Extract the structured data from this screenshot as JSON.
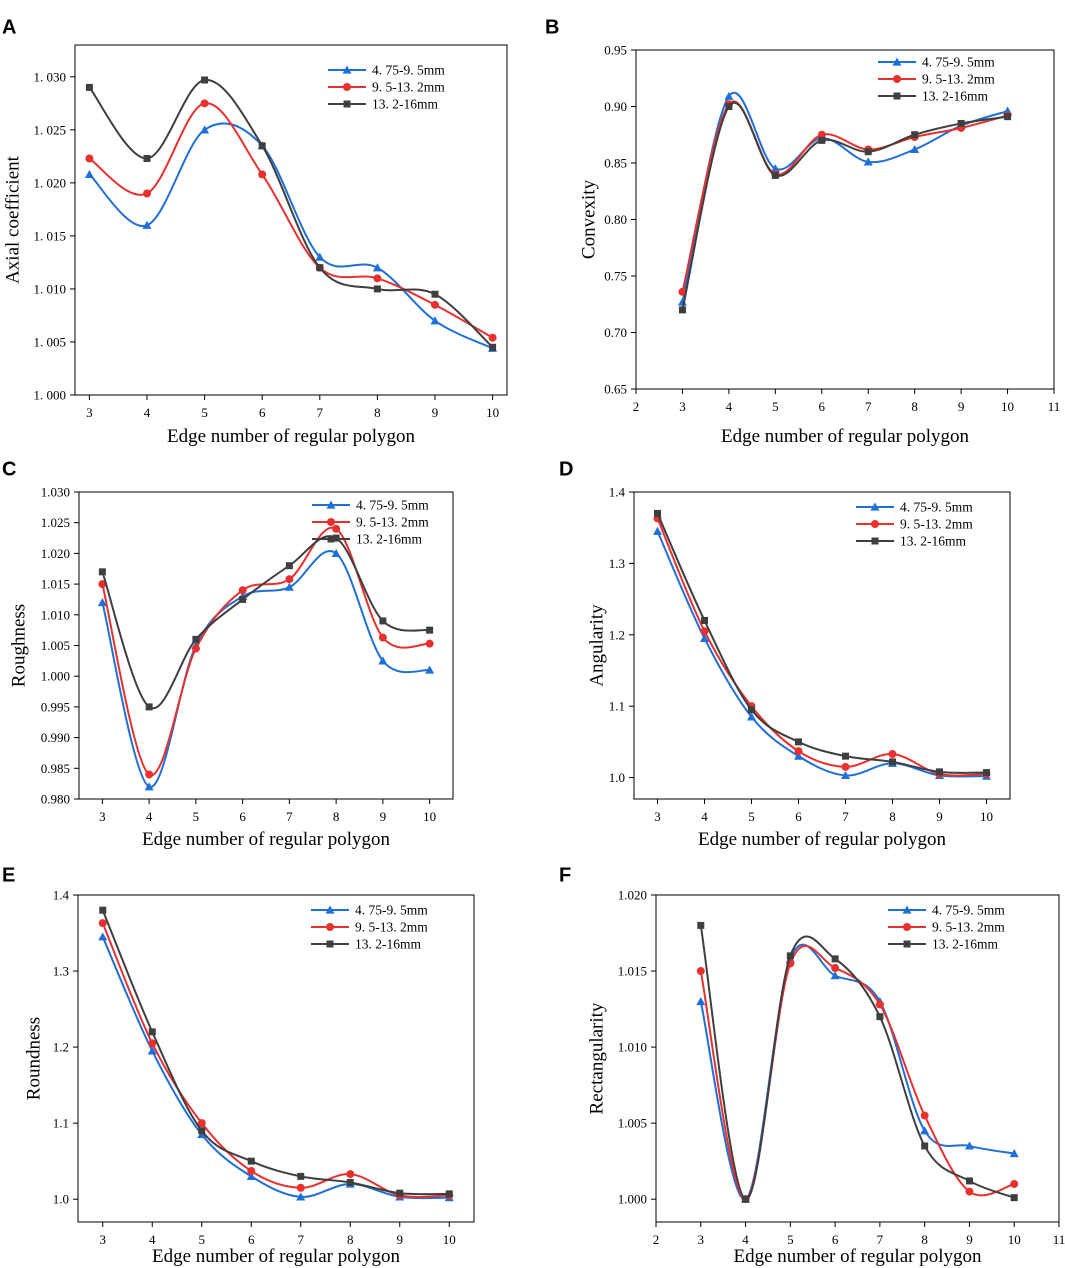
{
  "colors": {
    "blue": "#1f6fd8",
    "red": "#e8302f",
    "dark": "#3f3f3f"
  },
  "chart_data": [
    {
      "type": "line",
      "panel": "A",
      "ylabel": "Axial coefficient",
      "xlabel": "Edge number of regular polygon",
      "xlim": [
        2.75,
        10.25
      ],
      "ylim": [
        1.0,
        1.033
      ],
      "xticks": [
        3,
        4,
        5,
        6,
        7,
        8,
        9,
        10
      ],
      "yticks": [
        1.0,
        1.005,
        1.01,
        1.015,
        1.02,
        1.025,
        1.03
      ],
      "ytick_labels": [
        "1. 000",
        "1. 005",
        "1. 010",
        "1. 015",
        "1. 020",
        "1. 025",
        "1. 030"
      ],
      "legend": "top-right",
      "x": [
        3,
        4,
        5,
        6,
        7,
        8,
        9,
        10
      ],
      "series": [
        {
          "name": "4. 75-9. 5mm",
          "color": "blue",
          "marker": "triangle",
          "values": [
            1.0208,
            1.016,
            1.025,
            1.0235,
            1.013,
            1.012,
            1.007,
            1.0044
          ]
        },
        {
          "name": "9. 5-13. 2mm",
          "color": "red",
          "marker": "circle",
          "values": [
            1.0223,
            1.019,
            1.0275,
            1.0208,
            1.012,
            1.011,
            1.0085,
            1.0054
          ]
        },
        {
          "name": "13. 2-16mm",
          "color": "dark",
          "marker": "square",
          "values": [
            1.029,
            1.0223,
            1.0297,
            1.0235,
            1.012,
            1.01,
            1.0095,
            1.0045
          ]
        }
      ]
    },
    {
      "type": "line",
      "panel": "B",
      "ylabel": "Convexity",
      "xlabel": "Edge number of regular polygon",
      "xlim": [
        2,
        11
      ],
      "ylim": [
        0.65,
        0.95
      ],
      "xticks": [
        2,
        3,
        4,
        5,
        6,
        7,
        8,
        9,
        10,
        11
      ],
      "yticks": [
        0.65,
        0.7,
        0.75,
        0.8,
        0.85,
        0.9,
        0.95
      ],
      "ytick_labels": [
        "0.65",
        "0.70",
        "0.75",
        "0.80",
        "0.85",
        "0.90",
        "0.95"
      ],
      "legend": "top-right",
      "x": [
        3,
        4,
        5,
        6,
        7,
        8,
        9,
        10
      ],
      "series": [
        {
          "name": "4. 75-9. 5mm",
          "color": "blue",
          "marker": "triangle",
          "values": [
            0.727,
            0.909,
            0.845,
            0.872,
            0.851,
            0.862,
            0.883,
            0.896
          ]
        },
        {
          "name": "9. 5-13. 2mm",
          "color": "red",
          "marker": "circle",
          "values": [
            0.736,
            0.902,
            0.84,
            0.875,
            0.862,
            0.873,
            0.881,
            0.892
          ]
        },
        {
          "name": "13. 2-16mm",
          "color": "dark",
          "marker": "square",
          "values": [
            0.72,
            0.9,
            0.839,
            0.87,
            0.86,
            0.875,
            0.885,
            0.891
          ]
        }
      ]
    },
    {
      "type": "line",
      "panel": "C",
      "ylabel": "Roughness",
      "xlabel": "Edge number of regular polygon",
      "xlim": [
        2.5,
        10.5
      ],
      "ylim": [
        0.98,
        1.03
      ],
      "xticks": [
        3,
        4,
        5,
        6,
        7,
        8,
        9,
        10
      ],
      "yticks": [
        0.98,
        0.985,
        0.99,
        0.995,
        1.0,
        1.005,
        1.01,
        1.015,
        1.02,
        1.025,
        1.03
      ],
      "ytick_labels": [
        "0.980",
        "0.985",
        "0.990",
        "0.995",
        "1.000",
        "1.005",
        "1.010",
        "1.015",
        "1.020",
        "1.025",
        "1.030"
      ],
      "legend": "top-right",
      "x": [
        3,
        4,
        5,
        6,
        7,
        8,
        9,
        10
      ],
      "series": [
        {
          "name": "4. 75-9. 5mm",
          "color": "blue",
          "marker": "triangle",
          "values": [
            1.012,
            0.982,
            1.005,
            1.013,
            1.0145,
            1.02,
            1.0025,
            1.001
          ]
        },
        {
          "name": "9. 5-13. 2mm",
          "color": "red",
          "marker": "circle",
          "values": [
            1.015,
            0.984,
            1.0045,
            1.014,
            1.0158,
            1.024,
            1.0063,
            1.0053
          ]
        },
        {
          "name": "13. 2-16mm",
          "color": "dark",
          "marker": "square",
          "values": [
            1.017,
            0.995,
            1.006,
            1.0125,
            1.018,
            1.0225,
            1.009,
            1.0075
          ]
        }
      ]
    },
    {
      "type": "line",
      "panel": "D",
      "ylabel": "Angularity",
      "xlabel": "Edge number of regular polygon",
      "xlim": [
        2.5,
        10.5
      ],
      "ylim": [
        0.97,
        1.4
      ],
      "xticks": [
        3,
        4,
        5,
        6,
        7,
        8,
        9,
        10
      ],
      "yticks": [
        1.0,
        1.1,
        1.2,
        1.3,
        1.4
      ],
      "ytick_labels": [
        "1.0",
        "1.1",
        "1.2",
        "1.3",
        "1.4"
      ],
      "legend": "top-right",
      "x": [
        3,
        4,
        5,
        6,
        7,
        8,
        9,
        10
      ],
      "series": [
        {
          "name": "4. 75-9. 5mm",
          "color": "blue",
          "marker": "triangle",
          "values": [
            1.345,
            1.195,
            1.085,
            1.03,
            1.003,
            1.02,
            1.003,
            1.002
          ]
        },
        {
          "name": "9. 5-13. 2mm",
          "color": "red",
          "marker": "circle",
          "values": [
            1.363,
            1.205,
            1.1,
            1.037,
            1.015,
            1.033,
            1.005,
            1.005
          ]
        },
        {
          "name": "13. 2-16mm",
          "color": "dark",
          "marker": "square",
          "values": [
            1.37,
            1.22,
            1.095,
            1.05,
            1.03,
            1.022,
            1.008,
            1.007
          ]
        }
      ]
    },
    {
      "type": "line",
      "panel": "E",
      "ylabel": "Roundness",
      "xlabel": "Edge number of regular polygon",
      "xlim": [
        2.5,
        10.5
      ],
      "ylim": [
        0.97,
        1.4
      ],
      "xticks": [
        3,
        4,
        5,
        6,
        7,
        8,
        9,
        10
      ],
      "yticks": [
        1.0,
        1.1,
        1.2,
        1.3,
        1.4
      ],
      "ytick_labels": [
        "1.0",
        "1.1",
        "1.2",
        "1.3",
        "1.4"
      ],
      "legend": "top-right",
      "x": [
        3,
        4,
        5,
        6,
        7,
        8,
        9,
        10
      ],
      "series": [
        {
          "name": "4. 75-9. 5mm",
          "color": "blue",
          "marker": "triangle",
          "values": [
            1.345,
            1.195,
            1.085,
            1.03,
            1.003,
            1.02,
            1.003,
            1.002
          ]
        },
        {
          "name": "9. 5-13. 2mm",
          "color": "red",
          "marker": "circle",
          "values": [
            1.363,
            1.205,
            1.1,
            1.037,
            1.015,
            1.033,
            1.005,
            1.005
          ]
        },
        {
          "name": "13. 2-16mm",
          "color": "dark",
          "marker": "square",
          "values": [
            1.38,
            1.22,
            1.09,
            1.05,
            1.03,
            1.022,
            1.008,
            1.007
          ]
        }
      ]
    },
    {
      "type": "line",
      "panel": "F",
      "ylabel": "Rectangularity",
      "xlabel": "Edge number of regular polygon",
      "xlim": [
        2,
        11
      ],
      "ylim": [
        0.9985,
        1.02
      ],
      "xticks": [
        2,
        3,
        4,
        5,
        6,
        7,
        8,
        9,
        10,
        11
      ],
      "yticks": [
        1.0,
        1.005,
        1.01,
        1.015,
        1.02
      ],
      "ytick_labels": [
        "1.000",
        "1.005",
        "1.010",
        "1.015",
        "1.020"
      ],
      "legend": "top-right",
      "x": [
        3,
        4,
        5,
        6,
        7,
        8,
        9,
        10
      ],
      "series": [
        {
          "name": "4. 75-9. 5mm",
          "color": "blue",
          "marker": "triangle",
          "values": [
            1.013,
            1.0,
            1.0158,
            1.0147,
            1.013,
            1.0045,
            1.0035,
            1.003
          ]
        },
        {
          "name": "9. 5-13. 2mm",
          "color": "red",
          "marker": "circle",
          "values": [
            1.015,
            1.0,
            1.0155,
            1.0152,
            1.0128,
            1.0055,
            1.0005,
            1.001
          ]
        },
        {
          "name": "13. 2-16mm",
          "color": "dark",
          "marker": "square",
          "values": [
            1.018,
            1.0,
            1.016,
            1.0158,
            1.012,
            1.0035,
            1.0012,
            1.0001
          ]
        }
      ]
    }
  ]
}
